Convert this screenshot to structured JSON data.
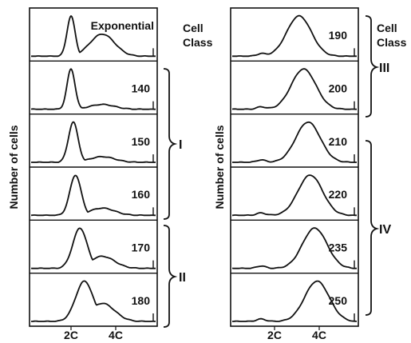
{
  "chart_data": [
    {
      "type": "line",
      "ylabel": "Number of cells",
      "xtick_labels": [
        "2C",
        "4C"
      ],
      "class_header": [
        "Cell",
        "Class"
      ],
      "series": [
        {
          "name": "Exponential",
          "peak_dna": 2.0,
          "shoulder": 0.55
        },
        {
          "name": "140",
          "peak_dna": 2.0,
          "shoulder": 0.12
        },
        {
          "name": "150",
          "peak_dna": 2.1,
          "shoulder": 0.14
        },
        {
          "name": "160",
          "peak_dna": 2.2,
          "shoulder": 0.18
        },
        {
          "name": "170",
          "peak_dna": 2.4,
          "shoulder": 0.3
        },
        {
          "name": "180",
          "peak_dna": 2.6,
          "shoulder": 0.45
        }
      ],
      "cell_classes": [
        {
          "label": "I",
          "series": [
            "140",
            "150",
            "160"
          ]
        },
        {
          "label": "II",
          "series": [
            "170",
            "180"
          ]
        }
      ]
    },
    {
      "type": "line",
      "ylabel": "Number of cells",
      "xtick_labels": [
        "2C",
        "4C"
      ],
      "class_header": [
        "Cell",
        "Class"
      ],
      "series": [
        {
          "name": "190",
          "peak_dna": 3.1
        },
        {
          "name": "200",
          "peak_dna": 3.3
        },
        {
          "name": "210",
          "peak_dna": 3.5
        },
        {
          "name": "220",
          "peak_dna": 3.6
        },
        {
          "name": "235",
          "peak_dna": 3.8
        },
        {
          "name": "250",
          "peak_dna": 3.9
        }
      ],
      "cell_classes": [
        {
          "label": "III",
          "series": [
            "190",
            "200"
          ]
        },
        {
          "label": "IV",
          "series": [
            "210",
            "220",
            "235",
            "250"
          ]
        }
      ]
    }
  ]
}
